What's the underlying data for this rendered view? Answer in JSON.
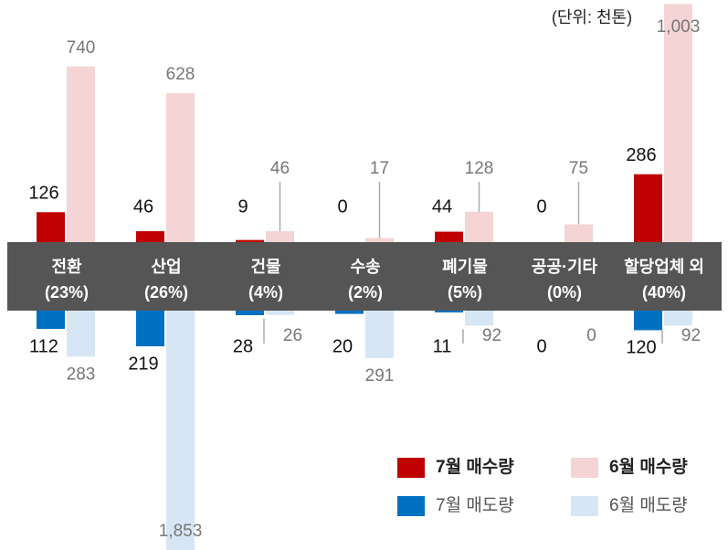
{
  "chart_data": {
    "type": "butterfly-bar",
    "subtitle": "(단위: 천톤)",
    "categories": [
      "전환",
      "산업",
      "건물",
      "수송",
      "폐기물",
      "공공·기타",
      "할당업체 외"
    ],
    "category_shares": [
      "(23%)",
      "(26%)",
      "(4%)",
      "(2%)",
      "(5%)",
      "(0%)",
      "(40%)"
    ],
    "ylim": [
      0,
      1020
    ],
    "ylim_bottom": [
      0,
      1470
    ],
    "series": [
      {
        "name": "7월 매수량",
        "color": "#c00000",
        "side": "top",
        "values": [
          126,
          46,
          9,
          0,
          44,
          0,
          286
        ]
      },
      {
        "name": "6월 매수량",
        "color": "#f4d4d4",
        "side": "top",
        "values": [
          740,
          628,
          46,
          17,
          128,
          75,
          1003
        ],
        "value_labels": [
          "740",
          "628",
          "46",
          "17",
          "128",
          "75",
          "1,003"
        ]
      },
      {
        "name": "7월 매도량",
        "color": "#0070c0",
        "side": "bottom",
        "values": [
          112,
          219,
          28,
          20,
          11,
          0,
          120
        ]
      },
      {
        "name": "6월 매도량",
        "color": "#d6e6f4",
        "side": "bottom",
        "values": [
          283,
          1853,
          26,
          291,
          92,
          0,
          92
        ],
        "value_labels": [
          "283",
          "1,853",
          "26",
          "291",
          "92",
          "0",
          "92"
        ]
      }
    ]
  }
}
